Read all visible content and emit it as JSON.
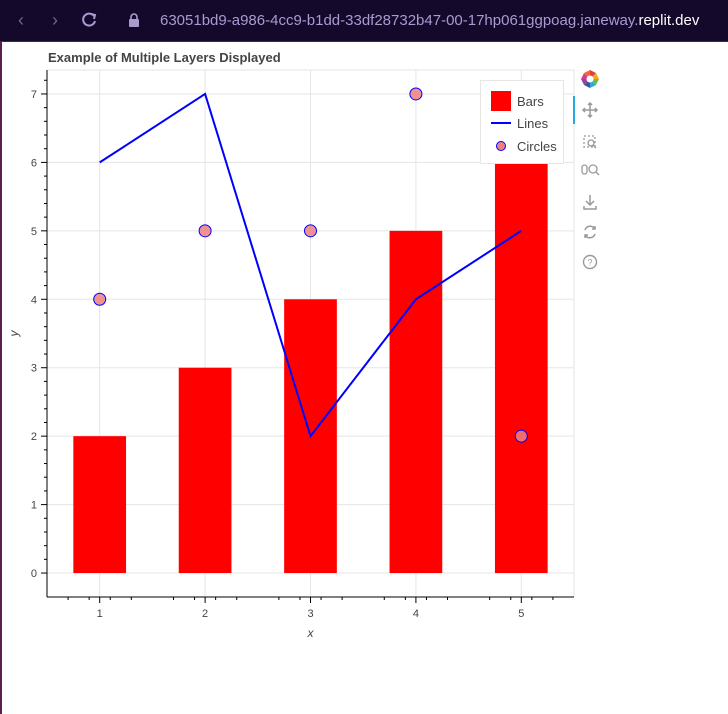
{
  "browser": {
    "url_prefix": "63051bd9-a986-4cc9-b1dd-33df28732b47-00-17hp061ggpoag.janeway.",
    "url_domain": "replit.dev"
  },
  "chart_data": {
    "type": "bar",
    "title": "Example of Multiple Layers Displayed",
    "xlabel": "x",
    "ylabel": "y",
    "x": [
      1,
      2,
      3,
      4,
      5
    ],
    "xlim": [
      0.5,
      5.5
    ],
    "ylim": [
      -0.35,
      7.35
    ],
    "xticks": [
      1,
      2,
      3,
      4,
      5
    ],
    "yticks": [
      0,
      1,
      2,
      3,
      4,
      5,
      6,
      7
    ],
    "grid": true,
    "legend_position": "top-right",
    "series": [
      {
        "name": "Bars",
        "kind": "bar",
        "values": [
          2,
          3,
          4,
          5,
          6
        ],
        "color": "#ff0000",
        "bar_width": 0.5
      },
      {
        "name": "Lines",
        "kind": "line",
        "values": [
          6,
          7,
          2,
          4,
          5
        ],
        "color": "#0000ff"
      },
      {
        "name": "Circles",
        "kind": "scatter",
        "values": [
          4,
          5,
          5,
          7,
          2
        ],
        "fill": "#f08080",
        "stroke": "#0000ff"
      }
    ]
  },
  "toolbar": {
    "icons": [
      "bokeh-logo-icon",
      "pan-icon",
      "box-zoom-icon",
      "wheel-zoom-icon",
      "save-icon",
      "reset-icon",
      "help-icon"
    ]
  }
}
